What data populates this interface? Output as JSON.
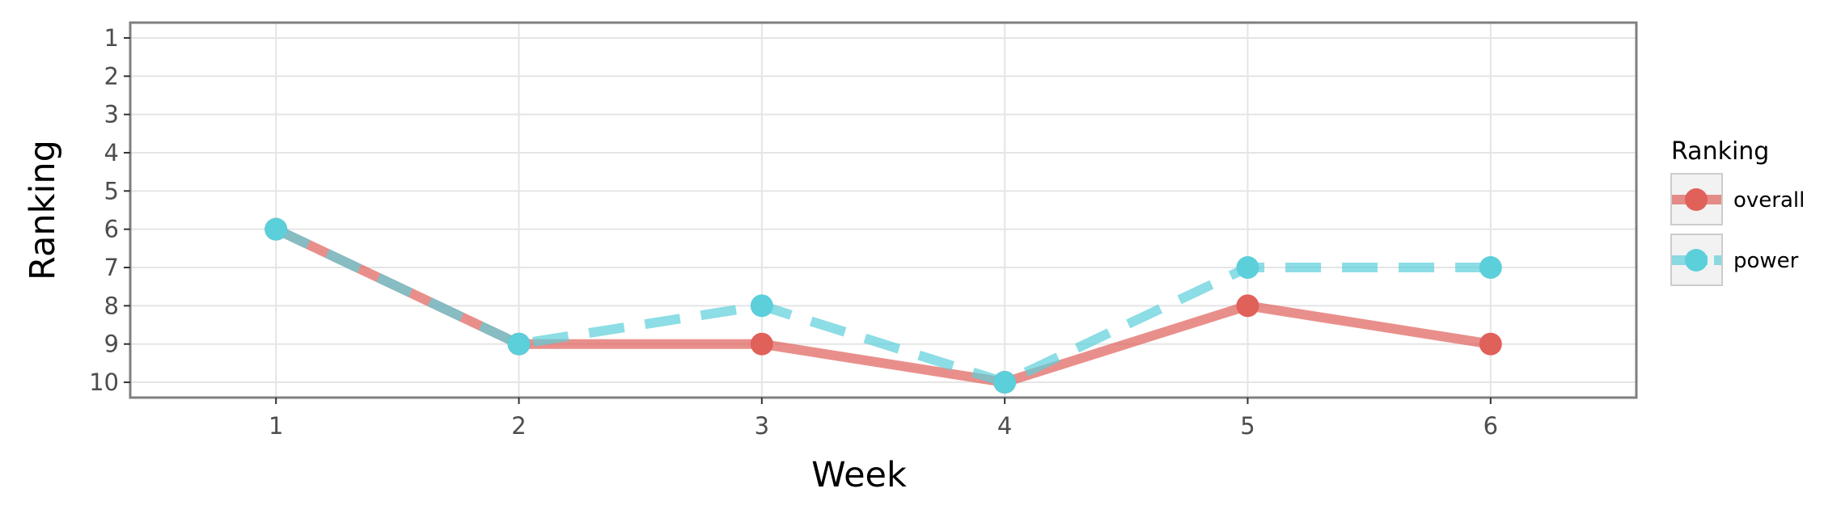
{
  "chart_data": {
    "type": "line",
    "xlabel": "Week",
    "ylabel": "Ranking",
    "x": [
      1,
      2,
      3,
      4,
      5,
      6
    ],
    "x_ticks": [
      "1",
      "2",
      "3",
      "4",
      "5",
      "6"
    ],
    "y_ticks": [
      "1",
      "2",
      "3",
      "4",
      "5",
      "6",
      "7",
      "8",
      "9",
      "10"
    ],
    "xlim": [
      0.4,
      6.6
    ],
    "ylim": [
      0.6,
      10.4
    ],
    "y_reversed": true,
    "grid": true,
    "legend": {
      "title": "Ranking",
      "position": "right"
    },
    "series": [
      {
        "name": "overall",
        "values": [
          6,
          9,
          9,
          10,
          8,
          9
        ],
        "color": "#e0605a",
        "line_style": "solid"
      },
      {
        "name": "power",
        "values": [
          6,
          9,
          8,
          10,
          7,
          7
        ],
        "color": "#5bcfda",
        "line_style": "dashed"
      }
    ]
  }
}
